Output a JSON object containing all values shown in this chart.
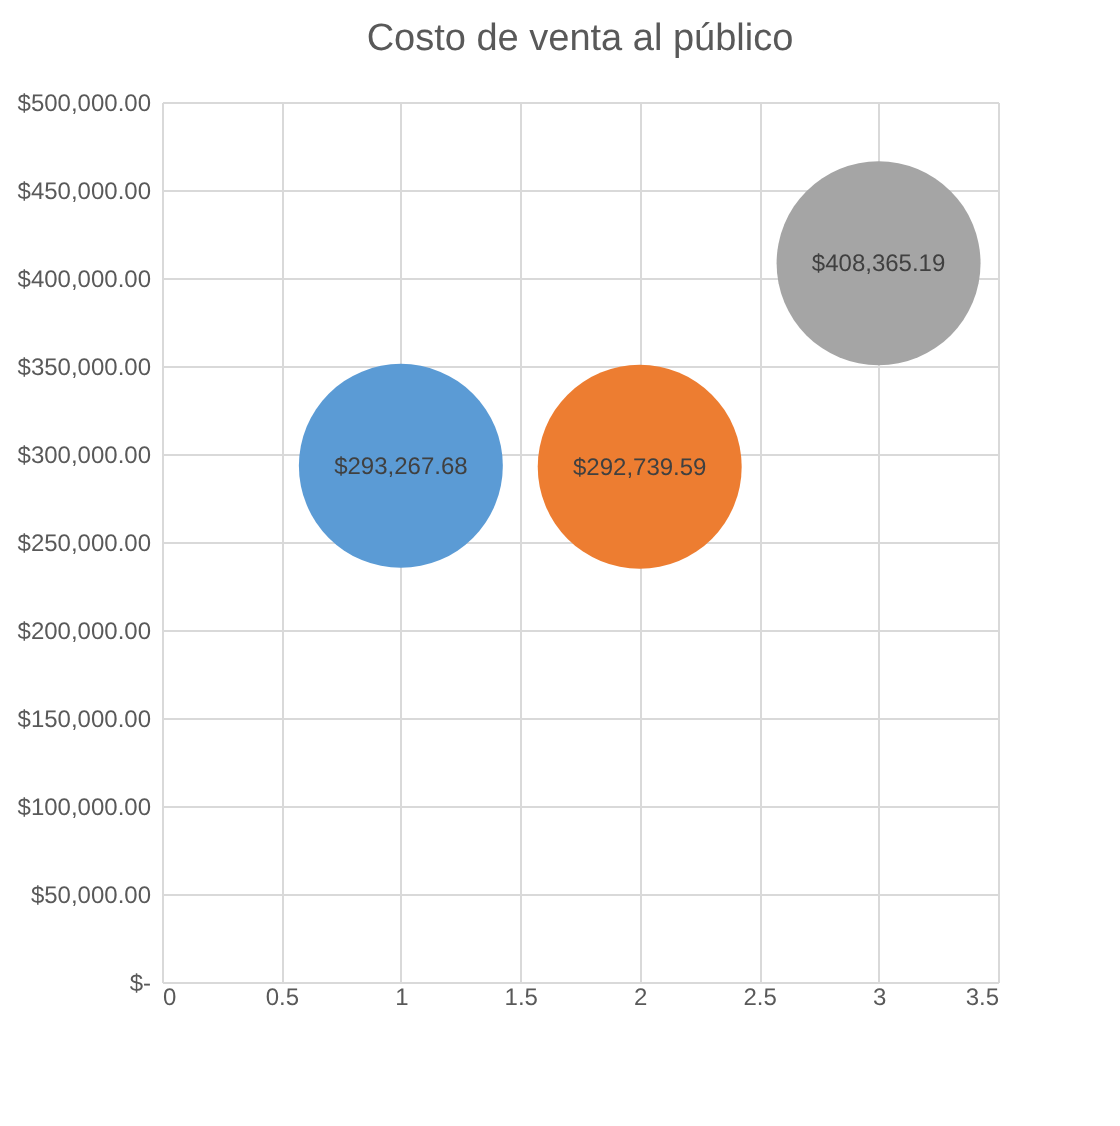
{
  "chart_data": {
    "type": "bubble",
    "title": "Costo de venta al público",
    "x": [
      1,
      2,
      3
    ],
    "values": [
      293267.68,
      292739.59,
      408365.19
    ],
    "sizes": [
      1,
      1,
      1
    ],
    "colors": [
      "#5b9bd5",
      "#ed7d31",
      "#a5a5a5"
    ],
    "value_labels": [
      "$293,267.68",
      "$292,739.59",
      "$408,365.19"
    ],
    "xlim": [
      0,
      3.5
    ],
    "xticks": [
      0,
      0.5,
      1,
      1.5,
      2,
      2.5,
      3,
      3.5
    ],
    "ylim": [
      0,
      500000
    ],
    "yticks": [
      {
        "value": 0,
        "label": "$-"
      },
      {
        "value": 50000,
        "label": "$50,000.00"
      },
      {
        "value": 100000,
        "label": "$100,000.00"
      },
      {
        "value": 150000,
        "label": "$150,000.00"
      },
      {
        "value": 200000,
        "label": "$200,000.00"
      },
      {
        "value": 250000,
        "label": "$250,000.00"
      },
      {
        "value": 300000,
        "label": "$300,000.00"
      },
      {
        "value": 350000,
        "label": "$350,000.00"
      },
      {
        "value": 400000,
        "label": "$400,000.00"
      },
      {
        "value": 450000,
        "label": "$450,000.00"
      },
      {
        "value": 500000,
        "label": "$500,000.00"
      }
    ],
    "grid": true
  }
}
